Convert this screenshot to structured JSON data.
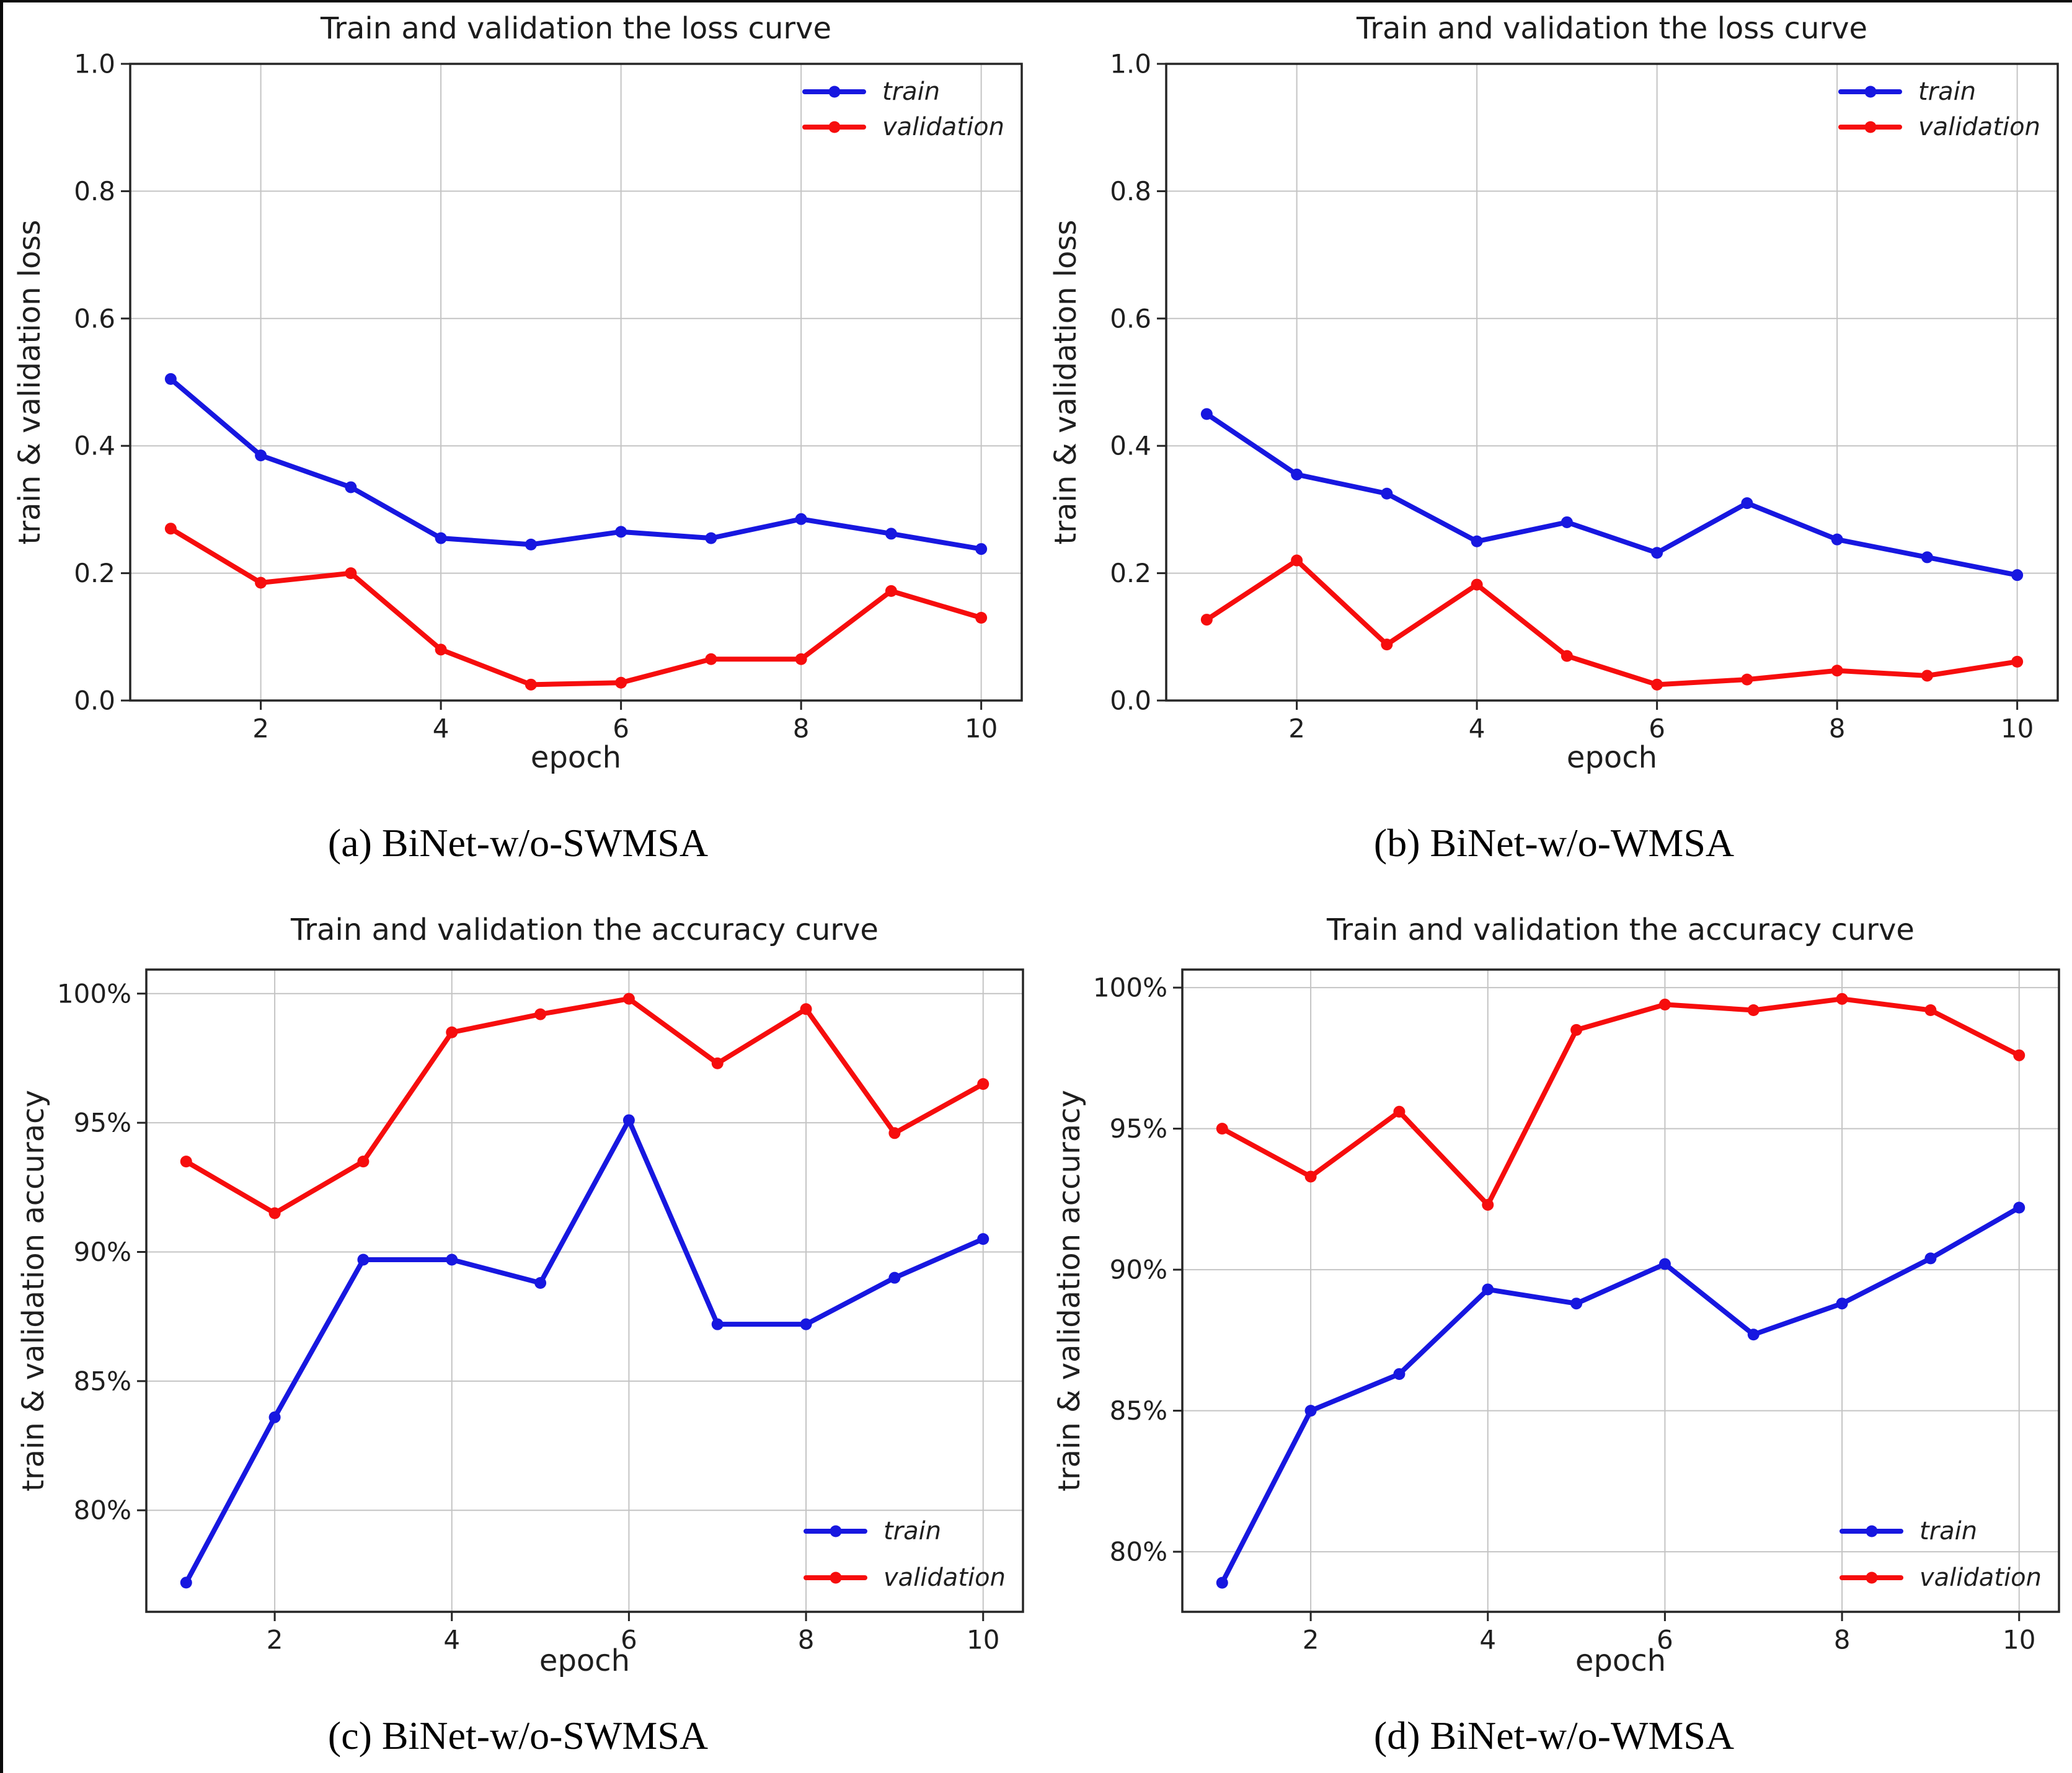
{
  "figure": {
    "background": "#ffffff",
    "edge_artifact_color": "#0a0a0a",
    "panels": [
      "a",
      "b",
      "c",
      "d"
    ]
  },
  "colors": {
    "train": "#1717e0",
    "validation": "#f60d0d",
    "grid": "#c4c4c4",
    "axis": "#262626",
    "text": "#1f1f1f"
  },
  "chart_data": [
    {
      "id": "loss-swmsa",
      "type": "line",
      "title": "Train and validation the loss curve",
      "caption": "(a) BiNet-w/o-SWMSA",
      "xlabel": "epoch",
      "ylabel": "train & validation loss",
      "x": [
        1,
        2,
        3,
        4,
        5,
        6,
        7,
        8,
        9,
        10
      ],
      "xlim": [
        0.55,
        10.45
      ],
      "ylim": [
        0.0,
        1.0
      ],
      "xticks": [
        2,
        4,
        6,
        8,
        10
      ],
      "xtick_labels": [
        "2",
        "4",
        "6",
        "8",
        "10"
      ],
      "yticks": [
        0.0,
        0.2,
        0.4,
        0.6,
        0.8,
        1.0
      ],
      "ytick_labels": [
        "0.0",
        "0.2",
        "0.4",
        "0.6",
        "0.8",
        "1.0"
      ],
      "grid": true,
      "legend_position": "upper-right",
      "series": [
        {
          "name": "train",
          "color": "#1717e0",
          "values": [
            0.505,
            0.385,
            0.335,
            0.255,
            0.245,
            0.265,
            0.255,
            0.285,
            0.262,
            0.238
          ]
        },
        {
          "name": "validation",
          "color": "#f60d0d",
          "values": [
            0.27,
            0.185,
            0.2,
            0.08,
            0.025,
            0.028,
            0.065,
            0.065,
            0.172,
            0.13
          ]
        }
      ]
    },
    {
      "id": "loss-wmsa",
      "type": "line",
      "title": "Train and validation the loss curve",
      "caption": "(b) BiNet-w/o-WMSA",
      "xlabel": "epoch",
      "ylabel": "train & validation loss",
      "x": [
        1,
        2,
        3,
        4,
        5,
        6,
        7,
        8,
        9,
        10
      ],
      "xlim": [
        0.55,
        10.45
      ],
      "ylim": [
        0.0,
        1.0
      ],
      "xticks": [
        2,
        4,
        6,
        8,
        10
      ],
      "xtick_labels": [
        "2",
        "4",
        "6",
        "8",
        "10"
      ],
      "yticks": [
        0.0,
        0.2,
        0.4,
        0.6,
        0.8,
        1.0
      ],
      "ytick_labels": [
        "0.0",
        "0.2",
        "0.4",
        "0.6",
        "0.8",
        "1.0"
      ],
      "grid": true,
      "legend_position": "upper-right",
      "series": [
        {
          "name": "train",
          "color": "#1717e0",
          "values": [
            0.45,
            0.355,
            0.325,
            0.25,
            0.28,
            0.232,
            0.31,
            0.253,
            0.225,
            0.197
          ]
        },
        {
          "name": "validation",
          "color": "#f60d0d",
          "values": [
            0.127,
            0.22,
            0.088,
            0.182,
            0.07,
            0.025,
            0.033,
            0.047,
            0.039,
            0.061
          ]
        }
      ]
    },
    {
      "id": "accuracy-swmsa",
      "type": "line",
      "title": "Train and validation the accuracy curve",
      "caption": "(c) BiNet-w/o-SWMSA",
      "xlabel": "epoch",
      "ylabel": "train & validation accuracy",
      "x": [
        1,
        2,
        3,
        4,
        5,
        6,
        7,
        8,
        9,
        10
      ],
      "xlim": [
        0.55,
        10.45
      ],
      "ylim": [
        76.07,
        100.93
      ],
      "xticks": [
        2,
        4,
        6,
        8,
        10
      ],
      "xtick_labels": [
        "2",
        "4",
        "6",
        "8",
        "10"
      ],
      "yticks": [
        80,
        85,
        90,
        95,
        100
      ],
      "ytick_labels": [
        "80%",
        "85%",
        "90%",
        "95%",
        "100%"
      ],
      "grid": true,
      "legend_position": "lower-right",
      "series": [
        {
          "name": "train",
          "color": "#1717e0",
          "values": [
            77.2,
            83.6,
            89.7,
            89.7,
            88.8,
            95.1,
            87.2,
            87.2,
            89.0,
            90.5
          ]
        },
        {
          "name": "validation",
          "color": "#f60d0d",
          "values": [
            93.5,
            91.5,
            93.5,
            98.5,
            99.2,
            99.8,
            97.3,
            99.4,
            94.6,
            96.5
          ]
        }
      ]
    },
    {
      "id": "accuracy-wmsa",
      "type": "line",
      "title": "Train and validation the accuracy curve",
      "caption": "(d) BiNet-w/o-WMSA",
      "xlabel": "epoch",
      "ylabel": "train & validation accuracy",
      "x": [
        1,
        2,
        3,
        4,
        5,
        6,
        7,
        8,
        9,
        10
      ],
      "xlim": [
        0.55,
        10.45
      ],
      "ylim": [
        77.87,
        100.64
      ],
      "xticks": [
        2,
        4,
        6,
        8,
        10
      ],
      "xtick_labels": [
        "2",
        "4",
        "6",
        "8",
        "10"
      ],
      "yticks": [
        80,
        85,
        90,
        95,
        100
      ],
      "ytick_labels": [
        "80%",
        "85%",
        "90%",
        "95%",
        "100%"
      ],
      "grid": true,
      "legend_position": "lower-right",
      "series": [
        {
          "name": "train",
          "color": "#1717e0",
          "values": [
            78.9,
            85.0,
            86.3,
            89.3,
            88.8,
            90.2,
            87.7,
            88.8,
            90.4,
            92.2
          ]
        },
        {
          "name": "validation",
          "color": "#f60d0d",
          "values": [
            95.0,
            93.3,
            95.6,
            92.3,
            98.5,
            99.4,
            99.2,
            99.6,
            99.2,
            97.6
          ]
        }
      ]
    }
  ]
}
